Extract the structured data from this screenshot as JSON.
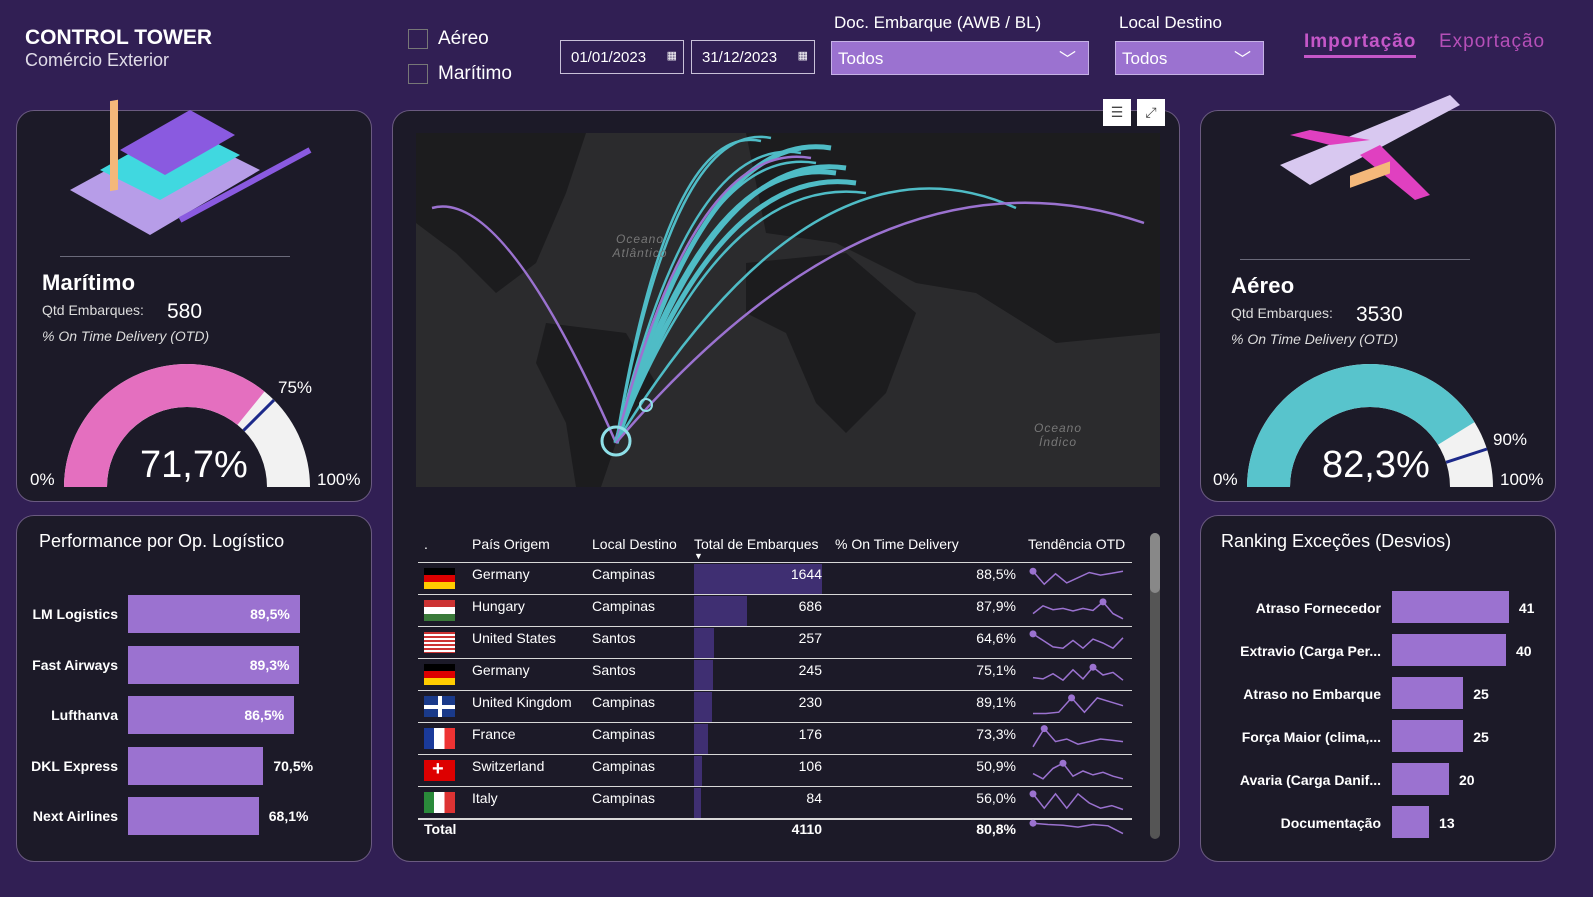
{
  "header": {
    "title": "CONTROL TOWER",
    "subtitle": "Comércio Exterior"
  },
  "filters": {
    "modal": [
      {
        "label": "Aéreo",
        "checked": false
      },
      {
        "label": "Marítimo",
        "checked": false
      }
    ],
    "date_start": "01/01/2023",
    "date_end": "31/12/2023",
    "doc_label": "Doc. Embarque (AWB / BL)",
    "doc_value": "Todos",
    "local_label": "Local Destino",
    "local_value": "Todos"
  },
  "tabs": [
    {
      "label": "Importação",
      "active": true
    },
    {
      "label": "Exportação",
      "active": false
    }
  ],
  "maritimo": {
    "title": "Marítimo",
    "qtd_label": "Qtd Embarques:",
    "qtd": "580",
    "otd_label": "% On Time Delivery (OTD)",
    "value": 71.7,
    "value_text": "71,7%",
    "target": 75,
    "target_text": "75%",
    "min": "0%",
    "max": "100%",
    "color": "#e46fbf"
  },
  "aereo": {
    "title": "Aéreo",
    "qtd_label": "Qtd Embarques:",
    "qtd": "3530",
    "otd_label": "% On Time Delivery (OTD)",
    "value": 82.3,
    "value_text": "82,3%",
    "target": 90,
    "target_text": "90%",
    "min": "0%",
    "max": "100%",
    "color": "#58c4cc"
  },
  "map": {
    "labels": [
      "Oceano Atlântico",
      "Oceano Índico"
    ]
  },
  "table": {
    "headers": [
      ".",
      "País Origem",
      "Local Destino",
      "Total de Embarques",
      "% On Time Delivery",
      "Tendência OTD"
    ],
    "rows": [
      {
        "flag": "de",
        "country": "Germany",
        "dest": "Campinas",
        "total": 1644,
        "otd": "88,5%",
        "trend": [
          80,
          30,
          70,
          35,
          55,
          75,
          65,
          72,
          80
        ]
      },
      {
        "flag": "hu",
        "country": "Hungary",
        "dest": "Campinas",
        "total": 686,
        "otd": "87,9%",
        "trend": [
          40,
          70,
          55,
          60,
          50,
          60,
          52,
          85,
          40,
          20
        ]
      },
      {
        "flag": "us",
        "country": "United States",
        "dest": "Santos",
        "total": 257,
        "otd": "64,6%",
        "trend": [
          85,
          60,
          35,
          30,
          60,
          30,
          65,
          50,
          30,
          70
        ]
      },
      {
        "flag": "de",
        "country": "Germany",
        "dest": "Santos",
        "total": 245,
        "otd": "75,1%",
        "trend": [
          40,
          35,
          55,
          30,
          70,
          35,
          80,
          50,
          60,
          30
        ]
      },
      {
        "flag": "gb",
        "country": "United Kingdom",
        "dest": "Campinas",
        "total": 230,
        "otd": "89,1%",
        "trend": [
          25,
          25,
          30,
          85,
          30,
          85,
          70,
          55
        ]
      },
      {
        "flag": "fr",
        "country": "France",
        "dest": "Campinas",
        "total": 176,
        "otd": "73,3%",
        "trend": [
          20,
          90,
          40,
          50,
          30,
          40,
          50,
          45,
          40
        ]
      },
      {
        "flag": "ch",
        "country": "Switzerland",
        "dest": "Campinas",
        "total": 106,
        "otd": "50,9%",
        "trend": [
          40,
          20,
          60,
          80,
          30,
          50,
          35,
          45,
          30,
          20
        ]
      },
      {
        "flag": "it",
        "country": "Italy",
        "dest": "Campinas",
        "total": 84,
        "otd": "56,0%",
        "trend": [
          85,
          30,
          85,
          30,
          85,
          50,
          30,
          40,
          25
        ]
      }
    ],
    "total_label": "Total",
    "total": "4110",
    "total_otd": "80,8%",
    "total_trend": [
      80,
      75,
      72,
      65,
      75,
      70,
      40
    ]
  },
  "performance": {
    "title": "Performance por Op. Logístico",
    "items": [
      {
        "label": "LM Logistics",
        "value": 89.5,
        "text": "89,5%"
      },
      {
        "label": "Fast Airways",
        "value": 89.3,
        "text": "89,3%"
      },
      {
        "label": "Lufthanva",
        "value": 86.5,
        "text": "86,5%"
      },
      {
        "label": "DKL Express",
        "value": 70.5,
        "text": "70,5%"
      },
      {
        "label": "Next Airlines",
        "value": 68.1,
        "text": "68,1%"
      }
    ]
  },
  "ranking": {
    "title": "Ranking Exceções (Desvios)",
    "items": [
      {
        "label": "Atraso Fornecedor",
        "value": 41
      },
      {
        "label": "Extravio (Carga Per...",
        "value": 40
      },
      {
        "label": "Atraso no Embarque",
        "value": 25
      },
      {
        "label": "Força Maior (clima,...",
        "value": 25
      },
      {
        "label": "Avaria (Carga Danif...",
        "value": 20
      },
      {
        "label": "Documentação",
        "value": 13
      }
    ]
  },
  "colors": {
    "bar": "#9b72d0",
    "table_bar": "#3f2f72",
    "sparkline": "#9b72d0",
    "accent": "#c050c0"
  }
}
